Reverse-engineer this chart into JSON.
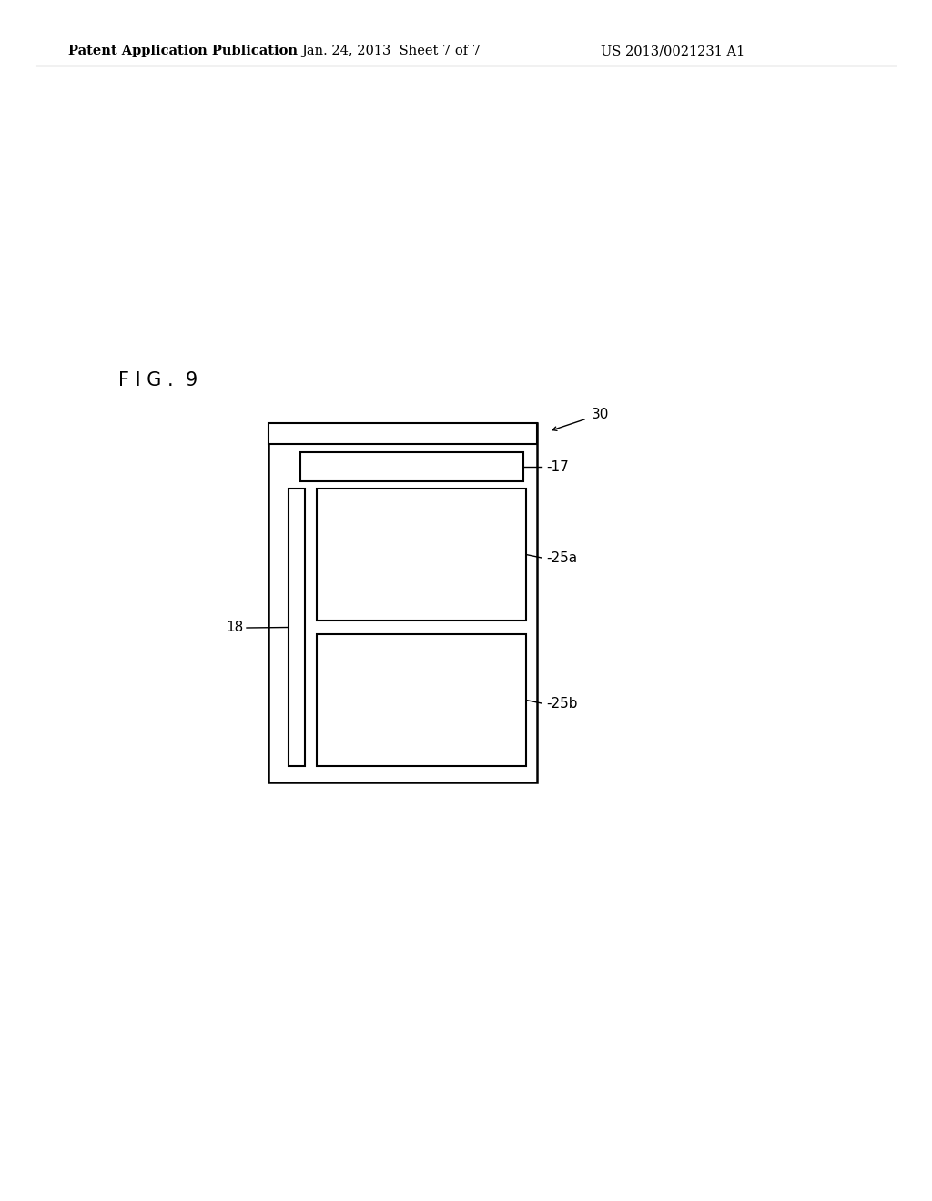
{
  "background_color": "#ffffff",
  "header_text_left": "Patent Application Publication",
  "header_text_mid": "Jan. 24, 2013  Sheet 7 of 7",
  "header_text_right": "US 2013/0021231 A1",
  "fig_label": "F I G .  9",
  "label_30": "30",
  "label_17": "-17",
  "label_25a": "-25a",
  "label_25b": "-25b",
  "label_18": "18",
  "line_color": "#000000",
  "line_width": 1.5,
  "font_size_header": 10.5,
  "font_size_label": 11,
  "font_size_fig": 15
}
